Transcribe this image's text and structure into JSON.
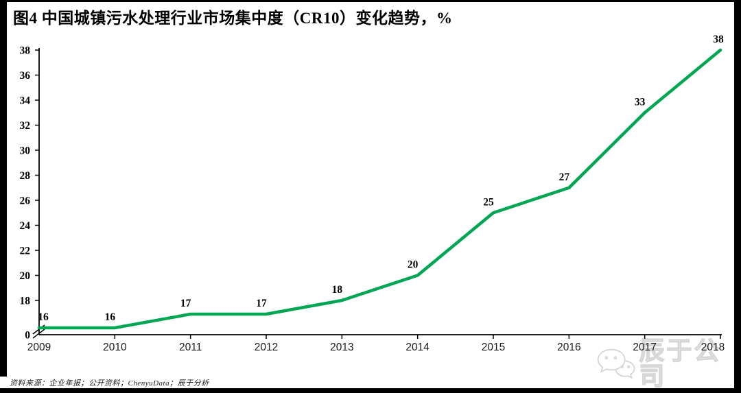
{
  "title": "图4 中国城镇污水处理行业市场集中度（CR10）变化趋势，%",
  "source_note": "资料来源：企业年报；公开资料；ChenyuData；辰于分析",
  "watermark": {
    "icon": "wechat-icon",
    "text": "辰于公司",
    "color": "#d6d6d6"
  },
  "chart_data": {
    "type": "line",
    "title": "中国城镇污水处理行业市场集中度（CR10）变化趋势，%",
    "x": [
      "2009",
      "2010",
      "2011",
      "2012",
      "2013",
      "2014",
      "2015",
      "2016",
      "2017",
      "2018"
    ],
    "values": [
      16,
      16,
      17,
      17,
      18,
      20,
      25,
      27,
      33,
      38
    ],
    "series_name": "CR10",
    "xlabel": "",
    "ylabel": "",
    "ylim": [
      0,
      38
    ],
    "y_ticks": [
      38,
      36,
      34,
      32,
      30,
      28,
      26,
      24,
      22,
      20,
      18
    ],
    "y_origin_label": "0",
    "axis_break": true,
    "grid": false,
    "legend": "none",
    "data_labels": true,
    "line_color": "#00A651",
    "axis_color": "#000000"
  }
}
